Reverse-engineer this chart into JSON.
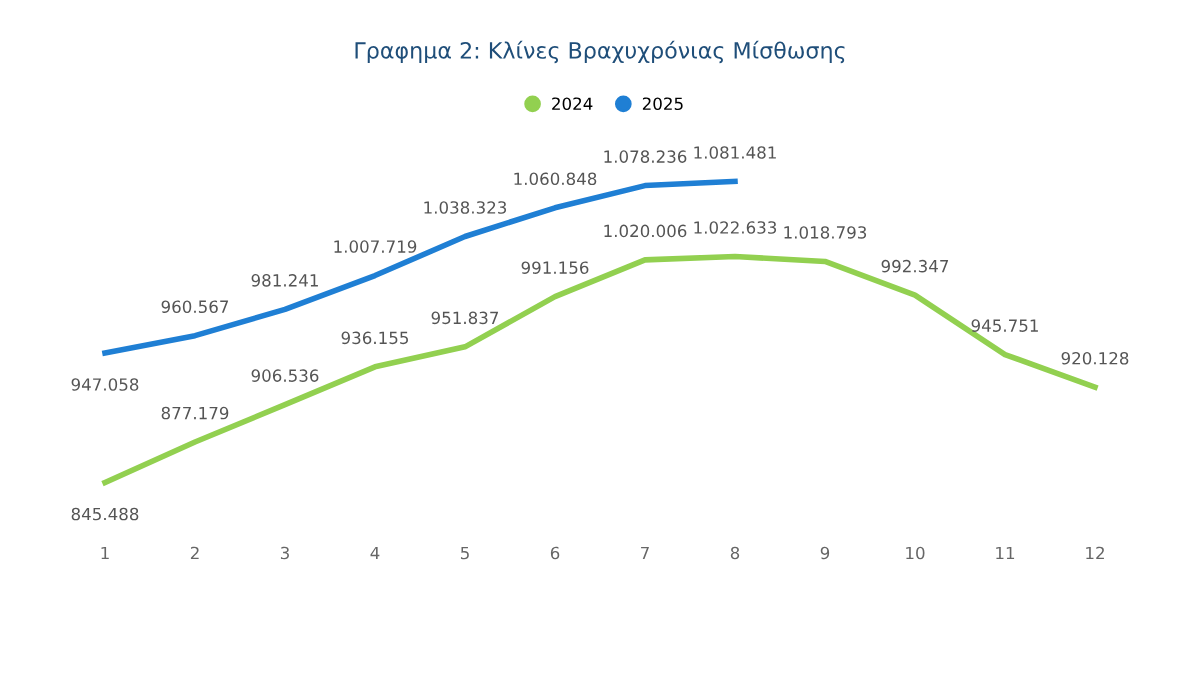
{
  "chart_data": {
    "type": "line",
    "title": "Γραφημα 2: Κλίνες Βραχυχρόνιας Μίσθωσης",
    "categories": [
      "1",
      "2",
      "3",
      "4",
      "5",
      "6",
      "7",
      "8",
      "9",
      "10",
      "11",
      "12"
    ],
    "series": [
      {
        "name": "2024",
        "color": "#92d050",
        "values": [
          845488,
          877179,
          906536,
          936155,
          951837,
          991156,
          1020006,
          1022633,
          1018793,
          992347,
          945751,
          920128
        ],
        "value_labels": [
          "845.488",
          "877.179",
          "906.536",
          "936.155",
          "951.837",
          "991.156",
          "1.020.006",
          "1.022.633",
          "1.018.793",
          "992.347",
          "945.751",
          "920.128"
        ]
      },
      {
        "name": "2025",
        "color": "#1f7fd4",
        "values": [
          947058,
          960567,
          981241,
          1007719,
          1038323,
          1060848,
          1078236,
          1081481,
          null,
          null,
          null,
          null
        ],
        "value_labels": [
          "947.058",
          "960.567",
          "981.241",
          "1.007.719",
          "1.038.323",
          "1.060.848",
          "1.078.236",
          "1.081.481",
          null,
          null,
          null,
          null
        ]
      }
    ],
    "legend": "top",
    "grid": false,
    "marker": "none",
    "line_style": "solid",
    "tick_labels": "x"
  }
}
